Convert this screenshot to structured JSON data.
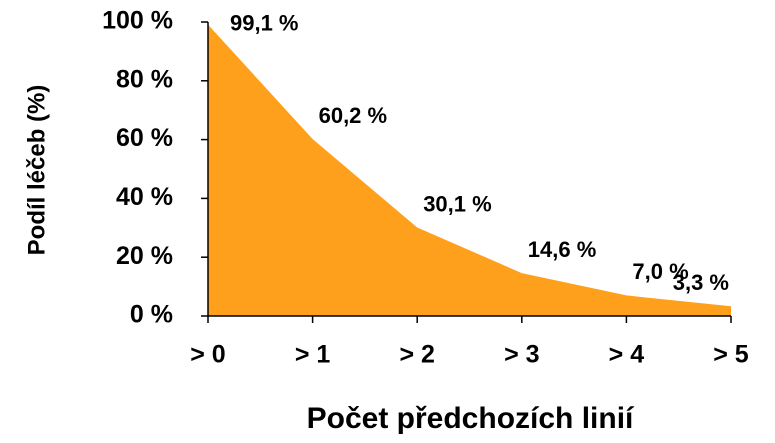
{
  "chart_data": {
    "type": "area",
    "categories": [
      "> 0",
      "> 1",
      "> 2",
      "> 3",
      "> 4",
      "> 5"
    ],
    "values": [
      99.1,
      60.2,
      30.1,
      14.6,
      7.0,
      3.3
    ],
    "value_labels": [
      "99,1 %",
      "60,2 %",
      "30,1 %",
      "14,6 %",
      "7,0 %",
      "3,3 %"
    ],
    "color": "#ffa01c",
    "xlabel": "Počet předchozích linií",
    "ylabel": "Podíl léčeb (%)",
    "ylim": [
      0,
      100
    ],
    "yticks": [
      {
        "value": 0,
        "label": "0 %"
      },
      {
        "value": 20,
        "label": "20 %"
      },
      {
        "value": 40,
        "label": "40 %"
      },
      {
        "value": 60,
        "label": "60 %"
      },
      {
        "value": 80,
        "label": "80 %"
      },
      {
        "value": 100,
        "label": "100 %"
      }
    ]
  }
}
